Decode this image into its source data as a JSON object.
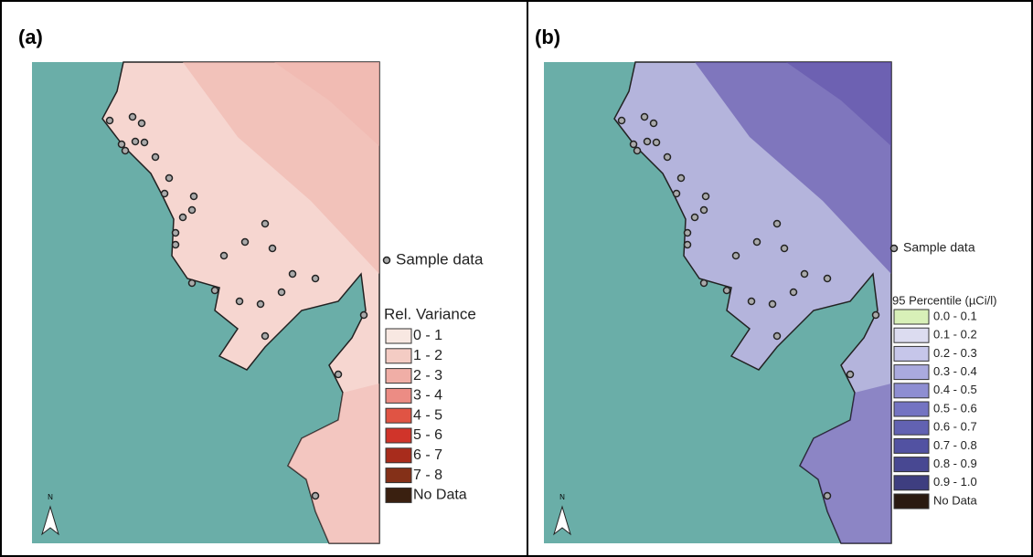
{
  "panels": [
    {
      "label": "(a)",
      "north": "N",
      "sample_label": "Sample data",
      "legend_title": "Rel. Variance",
      "land_color": "#f6d6d0",
      "land_shade": "#f0b4ac",
      "legend": [
        {
          "label": "0 - 1",
          "color": "#f8e8e2"
        },
        {
          "label": "1 - 2",
          "color": "#f4ccc4"
        },
        {
          "label": "2 - 3",
          "color": "#f0aea6"
        },
        {
          "label": "3 - 4",
          "color": "#ec8c84"
        },
        {
          "label": "4 - 5",
          "color": "#e05444"
        },
        {
          "label": "5 - 6",
          "color": "#d0342a"
        },
        {
          "label": "6 - 7",
          "color": "#a82c1c"
        },
        {
          "label": "7 - 8",
          "color": "#843018"
        },
        {
          "label": "No Data",
          "color": "#3a2010"
        }
      ]
    },
    {
      "label": "(b)",
      "north": "N",
      "sample_label": "Sample data",
      "legend_title": "95 Percentile (µCi/l)",
      "land_color": "#b4b4dc",
      "land_shade": "#5c4ca8",
      "legend": [
        {
          "label": "0.0 - 0.1",
          "color": "#d8f0b8"
        },
        {
          "label": "0.1 - 0.2",
          "color": "#dcdcf0"
        },
        {
          "label": "0.2 - 0.3",
          "color": "#c6c6ea"
        },
        {
          "label": "0.3 - 0.4",
          "color": "#aaaade"
        },
        {
          "label": "0.4 - 0.5",
          "color": "#8e8ed2"
        },
        {
          "label": "0.5 - 0.6",
          "color": "#7474c2"
        },
        {
          "label": "0.6 - 0.7",
          "color": "#6262b2"
        },
        {
          "label": "0.7 - 0.8",
          "color": "#5252a2"
        },
        {
          "label": "0.8 - 0.9",
          "color": "#484892"
        },
        {
          "label": "0.9 - 1.0",
          "color": "#3e3e80"
        },
        {
          "label": "No Data",
          "color": "#2a1a10"
        }
      ]
    }
  ]
}
